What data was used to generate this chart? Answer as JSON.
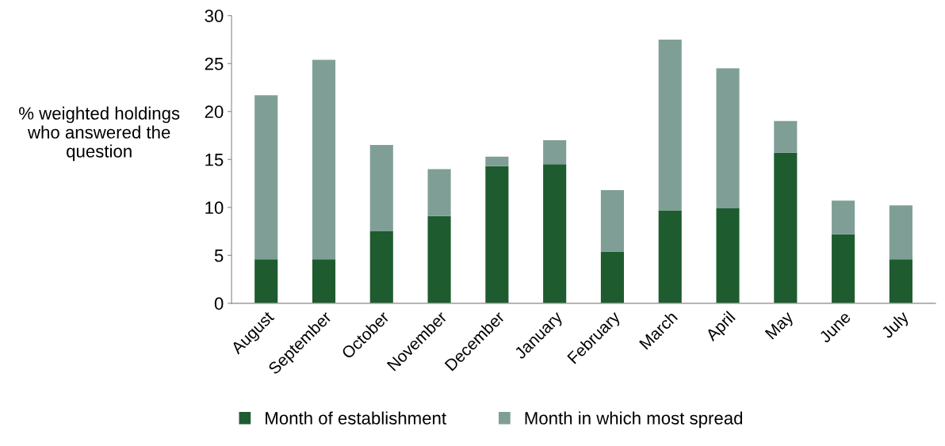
{
  "chart_data": {
    "type": "bar",
    "stacked": true,
    "ylabel": "% weighted holdings\nwho answered the\nquestion",
    "categories": [
      "August",
      "September",
      "October",
      "November",
      "December",
      "January",
      "February",
      "March",
      "April",
      "May",
      "June",
      "July"
    ],
    "series": [
      {
        "name": "Month of establishment",
        "color": "#1e5c30",
        "values": [
          4.6,
          4.6,
          7.5,
          9.1,
          14.3,
          14.5,
          5.4,
          9.7,
          9.9,
          15.7,
          7.2,
          4.6
        ]
      },
      {
        "name": "Month in which most spread",
        "color": "#7f9f96",
        "values": [
          17.1,
          20.8,
          9.0,
          4.9,
          1.0,
          2.5,
          6.4,
          17.8,
          14.6,
          3.3,
          3.5,
          5.6
        ]
      }
    ],
    "ylim": [
      0,
      30
    ],
    "yticks": [
      0,
      5,
      10,
      15,
      20,
      25,
      30
    ],
    "grid": false,
    "legend": "bottom"
  }
}
